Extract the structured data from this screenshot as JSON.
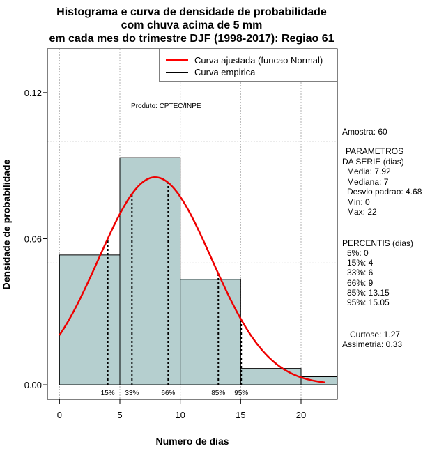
{
  "chart_data": {
    "type": "bar",
    "title_lines": [
      "Histograma e curva de densidade de probabilidade",
      "com chuva acima de 5 mm",
      "em cada mes do trimestre DJF (1998-2017): Regiao 61"
    ],
    "xlabel": "Numero de dias",
    "ylabel": "Densidade de probabilidade",
    "xlim": [
      -1,
      23
    ],
    "ylim": [
      -0.006,
      0.138
    ],
    "x_ticks": [
      0,
      5,
      10,
      15,
      20
    ],
    "y_ticks": [
      0.0,
      0.06,
      0.12
    ],
    "y_tick_labels": [
      "0.00",
      "0.06",
      "0.12"
    ],
    "gridlines_y": [
      0.1,
      0.05
    ],
    "bins": [
      {
        "from": 0,
        "to": 5,
        "density": 0.0533
      },
      {
        "from": 5,
        "to": 10,
        "density": 0.0933
      },
      {
        "from": 10,
        "to": 15,
        "density": 0.0433
      },
      {
        "from": 15,
        "to": 20,
        "density": 0.0067
      },
      {
        "from": 20,
        "to": 23,
        "density": 0.0033
      }
    ],
    "normal_fit": {
      "mean": 7.92,
      "sd": 4.68,
      "x_from": 0,
      "x_to": 22
    },
    "percentile_lines": [
      {
        "label": "15%",
        "x": 4
      },
      {
        "label": "33%",
        "x": 6
      },
      {
        "label": "66%",
        "x": 9
      },
      {
        "label": "85%",
        "x": 13.15
      },
      {
        "label": "95%",
        "x": 15.05
      }
    ],
    "legend": [
      {
        "label": "Curva ajustada (funcao Normal)",
        "color": "#ff0000"
      },
      {
        "label": "Curva empirica",
        "color": "#000000"
      }
    ],
    "legend_position": "top-right",
    "bar_color": "#b5cfcf",
    "curve_color": "#ee0000",
    "annotation": "Produto: CPTEC/INPE"
  },
  "stats": {
    "amostra": "Amostra: 60",
    "parametros_title_1": "PARAMETROS",
    "parametros_title_2": "DA SERIE (dias)",
    "media": "Media: 7.92",
    "mediana": "Mediana: 7",
    "desvio": "Desvio padrao: 4.68",
    "min": "Min: 0",
    "max": "Max: 22",
    "percentis_title": "PERCENTIS (dias)",
    "p5": "5%: 0",
    "p15": "15%: 4",
    "p33": "33%: 6",
    "p66": "66%: 9",
    "p85": "85%: 13.15",
    "p95": "95%: 15.05",
    "curtose": "Curtose: 1.27",
    "assimetria": "Assimetria: 0.33"
  }
}
